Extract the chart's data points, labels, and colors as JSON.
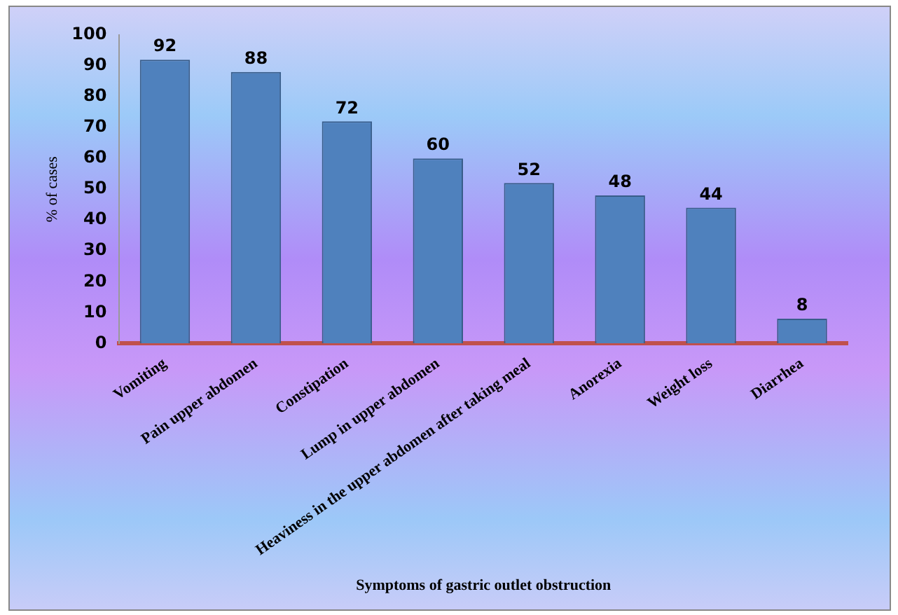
{
  "chart_data": {
    "type": "bar",
    "xlabel": "Symptoms of gastric outlet obstruction",
    "ylabel": "% of cases",
    "categories": [
      "Vomiting",
      "Pain upper abdomen",
      "Constipation",
      "Lump in upper abdomen",
      "Heaviness in the upper abdomen after taking meal",
      "Anorexia",
      "Weight loss",
      "Diarrhea"
    ],
    "values": [
      92,
      88,
      72,
      60,
      52,
      48,
      44,
      8
    ],
    "color": "#4f81bd",
    "ylim": [
      0,
      100
    ],
    "yticks": [
      0,
      10,
      20,
      30,
      40,
      50,
      60,
      70,
      80,
      90,
      100
    ],
    "grid": false,
    "legend": false,
    "data_labels": true
  }
}
